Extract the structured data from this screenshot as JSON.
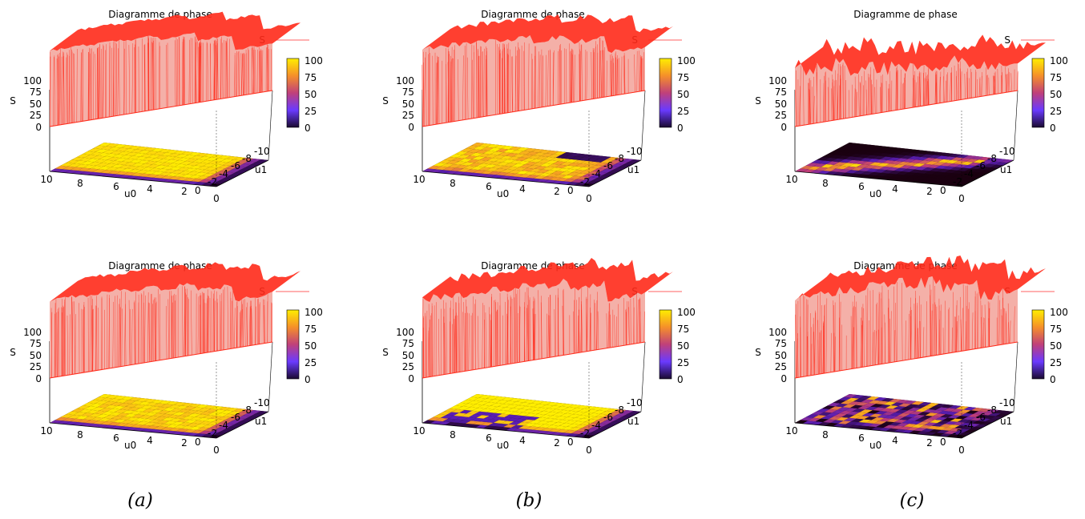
{
  "chart_data": [
    {
      "id": "a1",
      "type": "surface",
      "title": "Diagramme de phase",
      "series": [
        {
          "name": "S",
          "color": "#ff2a1a"
        }
      ],
      "zlabel": "S",
      "xlabel": "u0",
      "ylabel": "u1",
      "zlim": [
        0,
        100
      ],
      "xlim": [
        0,
        10
      ],
      "ylim": [
        -10,
        0
      ],
      "z_ticks": [
        "100",
        "75",
        "50",
        "25",
        "0"
      ],
      "x_ticks": [
        "10",
        "8",
        "6",
        "4",
        "2",
        "0"
      ],
      "y_ticks": [
        "-10",
        "-8",
        "-6",
        "-4",
        "-2",
        "0"
      ],
      "colorbar": {
        "ticks": [
          "100",
          "75",
          "50",
          "25",
          "0"
        ],
        "range": [
          0,
          100
        ]
      },
      "peak_fraction": [
        0.98,
        0.97,
        0.95,
        0.9,
        0.8,
        0.6
      ],
      "noise": 0.15,
      "pattern": "plateau-full"
    },
    {
      "id": "b1",
      "type": "surface",
      "title": "Diagramme de phase",
      "series": [
        {
          "name": "S",
          "color": "#ff2a1a"
        }
      ],
      "zlabel": "S",
      "xlabel": "u0",
      "ylabel": "u1",
      "zlim": [
        0,
        100
      ],
      "xlim": [
        0,
        10
      ],
      "ylim": [
        -10,
        0
      ],
      "z_ticks": [
        "100",
        "75",
        "50",
        "25",
        "0"
      ],
      "x_ticks": [
        "10",
        "8",
        "6",
        "4",
        "2",
        "0"
      ],
      "y_ticks": [
        "-10",
        "-8",
        "-6",
        "-4",
        "-2",
        "0"
      ],
      "colorbar": {
        "ticks": [
          "100",
          "75",
          "50",
          "25",
          "0"
        ],
        "range": [
          0,
          100
        ]
      },
      "peak_fraction": [
        0.98,
        0.96,
        0.92,
        0.85,
        0.75,
        0.55
      ],
      "noise": 0.3,
      "pattern": "plateau-dip"
    },
    {
      "id": "c1",
      "type": "surface",
      "title": "Diagramme de phase",
      "series": [
        {
          "name": "S",
          "color": "#ff2a1a"
        }
      ],
      "zlabel": "S",
      "xlabel": "u0",
      "ylabel": "u1",
      "zlim": [
        0,
        100
      ],
      "xlim": [
        0,
        10
      ],
      "ylim": [
        -10,
        0
      ],
      "z_ticks": [
        "100",
        "75",
        "50",
        "25",
        "0"
      ],
      "x_ticks": [
        "10",
        "8",
        "6",
        "4",
        "2",
        "0"
      ],
      "y_ticks": [
        "-10",
        "-8",
        "-6",
        "-4",
        "-2",
        "0"
      ],
      "colorbar": {
        "ticks": [
          "100",
          "75",
          "50",
          "25",
          "0"
        ],
        "range": [
          0,
          100
        ]
      },
      "peak_fraction": [
        0.95,
        0.85,
        0.7,
        0.55,
        0.45,
        0.4
      ],
      "noise": 0.55,
      "pattern": "ridge"
    },
    {
      "id": "a2",
      "type": "surface",
      "title": "Diagramme de phase",
      "series": [
        {
          "name": "S",
          "color": "#ff2a1a"
        }
      ],
      "zlabel": "S",
      "xlabel": "u0",
      "ylabel": "u1",
      "zlim": [
        0,
        100
      ],
      "xlim": [
        0,
        10
      ],
      "ylim": [
        -10,
        0
      ],
      "z_ticks": [
        "100",
        "75",
        "50",
        "25",
        "0"
      ],
      "x_ticks": [
        "10",
        "8",
        "6",
        "4",
        "2",
        "0"
      ],
      "y_ticks": [
        "-10",
        "-8",
        "-6",
        "-4",
        "-2",
        "0"
      ],
      "colorbar": {
        "ticks": [
          "100",
          "75",
          "50",
          "25",
          "0"
        ],
        "range": [
          0,
          100
        ]
      },
      "peak_fraction": [
        0.98,
        0.97,
        0.95,
        0.9,
        0.8,
        0.6
      ],
      "noise": 0.3,
      "pattern": "plateau-full"
    },
    {
      "id": "b2",
      "type": "surface",
      "title": "Diagramme de phase",
      "series": [
        {
          "name": "S",
          "color": "#ff2a1a"
        }
      ],
      "zlabel": "S",
      "xlabel": "u0",
      "ylabel": "u1",
      "zlim": [
        0,
        100
      ],
      "xlim": [
        0,
        10
      ],
      "ylim": [
        -10,
        0
      ],
      "z_ticks": [
        "100",
        "75",
        "50",
        "25",
        "0"
      ],
      "x_ticks": [
        "10",
        "8",
        "6",
        "4",
        "2",
        "0"
      ],
      "y_ticks": [
        "-10",
        "-8",
        "-6",
        "-4",
        "-2",
        "0"
      ],
      "colorbar": {
        "ticks": [
          "100",
          "75",
          "50",
          "25",
          "0"
        ],
        "range": [
          0,
          100
        ]
      },
      "peak_fraction": [
        0.98,
        0.96,
        0.94,
        0.9,
        0.8,
        0.6
      ],
      "noise": 0.5,
      "pattern": "plateau-noisy"
    },
    {
      "id": "c2",
      "type": "surface",
      "title": "Diagramme de phase",
      "series": [
        {
          "name": "S",
          "color": "#ff2a1a"
        }
      ],
      "zlabel": "S",
      "xlabel": "u0",
      "ylabel": "u1",
      "zlim": [
        0,
        100
      ],
      "xlim": [
        0,
        10
      ],
      "ylim": [
        -10,
        0
      ],
      "z_ticks": [
        "100",
        "75",
        "50",
        "25",
        "0"
      ],
      "x_ticks": [
        "10",
        "8",
        "6",
        "4",
        "2",
        "0"
      ],
      "y_ticks": [
        "-10",
        "-8",
        "-6",
        "-4",
        "-2",
        "0"
      ],
      "colorbar": {
        "ticks": [
          "100",
          "75",
          "50",
          "25",
          "0"
        ],
        "range": [
          0,
          100
        ]
      },
      "peak_fraction": [
        0.98,
        0.96,
        0.94,
        0.9,
        0.8,
        0.6
      ],
      "noise": 0.75,
      "pattern": "plateau-scattered"
    }
  ],
  "captions": [
    "(a)",
    "(b)",
    "(c)"
  ],
  "colors": {
    "surface": "#ff2a1a",
    "surface_fill": "#f4b0a8",
    "map_high": "#ffee00",
    "map_low": "#1a0010",
    "floor_axis": "#000000"
  }
}
